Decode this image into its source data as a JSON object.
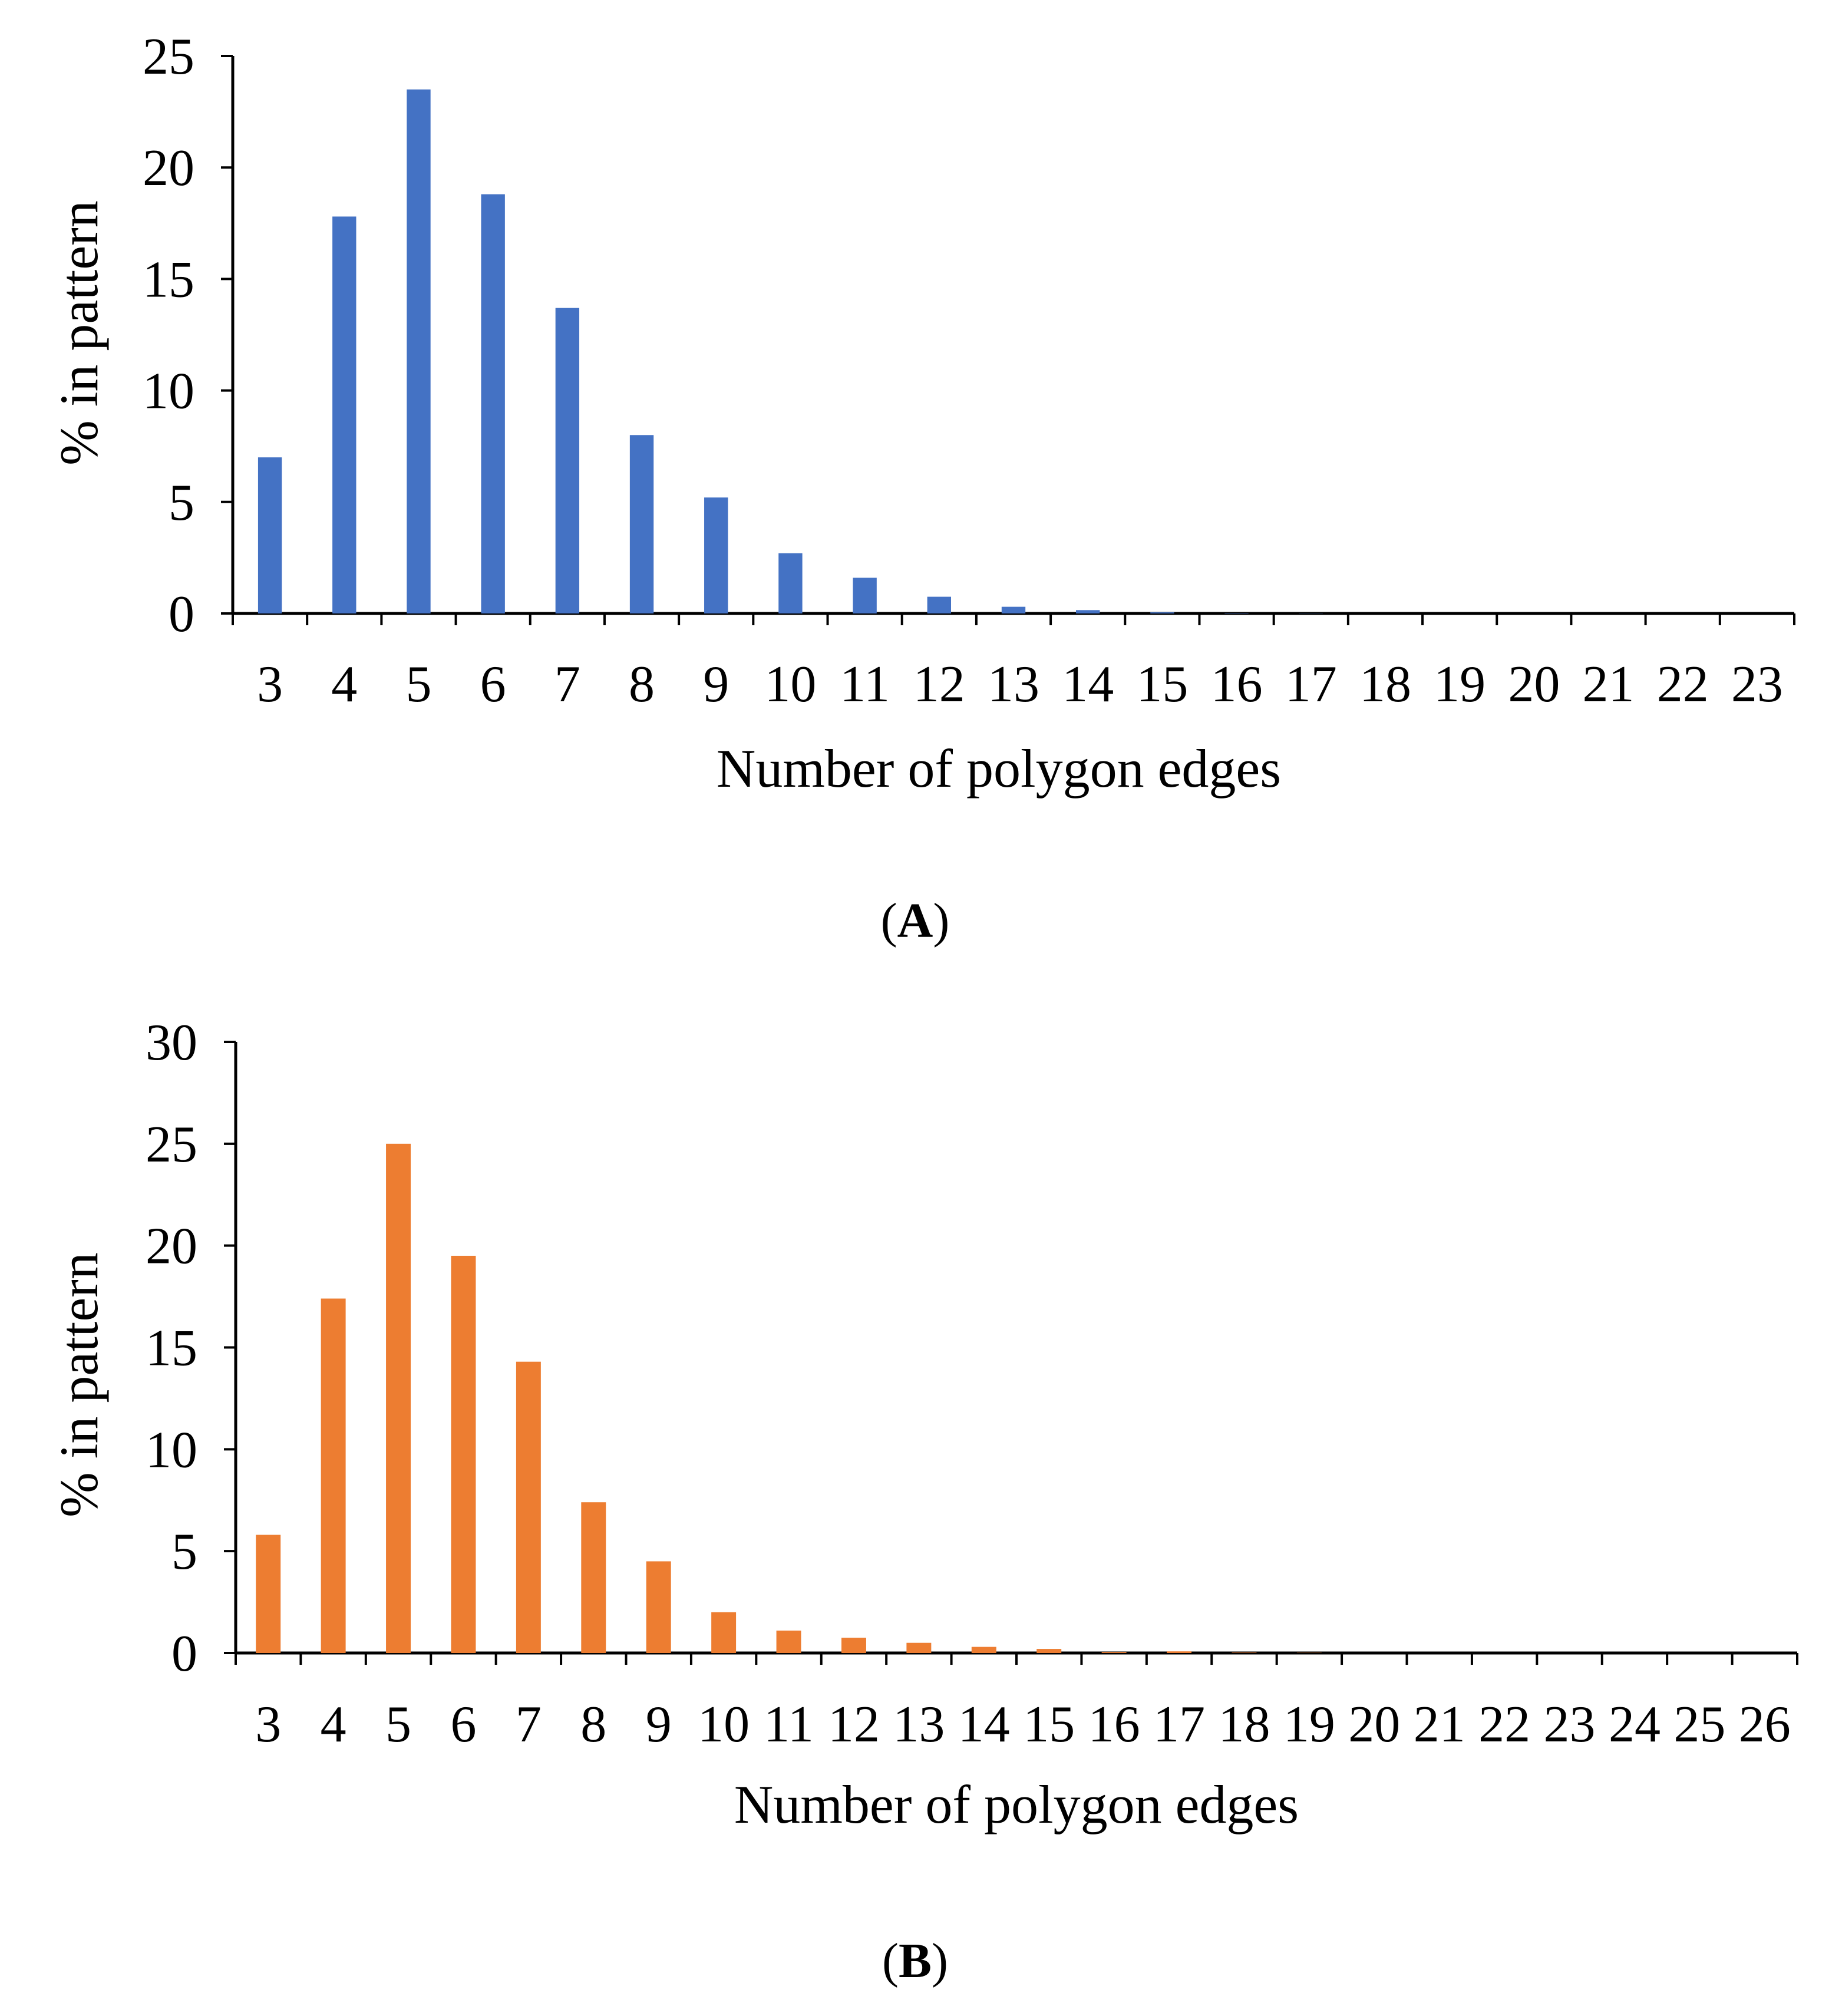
{
  "chart_data": [
    {
      "type": "bar",
      "panel_label": "A",
      "categories": [
        "3",
        "4",
        "5",
        "6",
        "7",
        "8",
        "9",
        "10",
        "11",
        "12",
        "13",
        "14",
        "15",
        "16",
        "17",
        "18",
        "19",
        "20",
        "21",
        "22",
        "23"
      ],
      "series": [
        {
          "name": "% in pattern",
          "color": "#4472C4",
          "values": [
            7.0,
            17.8,
            23.5,
            18.8,
            13.7,
            8.0,
            5.2,
            2.7,
            1.6,
            0.75,
            0.3,
            0.15,
            0.05,
            0.02,
            0.01,
            0,
            0,
            0,
            0,
            0,
            0
          ]
        }
      ],
      "xlabel": "Number of polygon edges",
      "ylabel": "% in pattern",
      "ylim": [
        0,
        25
      ],
      "yticks": [
        "0",
        "5",
        "10",
        "15",
        "20",
        "25"
      ],
      "grid": false,
      "legend": "none"
    },
    {
      "type": "bar",
      "panel_label": "B",
      "categories": [
        "3",
        "4",
        "5",
        "6",
        "7",
        "8",
        "9",
        "10",
        "11",
        "12",
        "13",
        "14",
        "15",
        "16",
        "17",
        "18",
        "19",
        "20",
        "21",
        "22",
        "23",
        "24",
        "25",
        "26"
      ],
      "series": [
        {
          "name": "% in pattern",
          "color": "#ED7D31",
          "values": [
            5.8,
            17.4,
            25.0,
            19.5,
            14.3,
            7.4,
            4.5,
            2.0,
            1.1,
            0.75,
            0.5,
            0.3,
            0.2,
            0.05,
            0.08,
            0.02,
            0.01,
            0,
            0,
            0,
            0,
            0,
            0,
            0
          ]
        }
      ],
      "xlabel": "Number of polygon edges",
      "ylabel": "% in pattern",
      "ylim": [
        0,
        30
      ],
      "yticks": [
        "0",
        "5",
        "10",
        "15",
        "20",
        "25",
        "30"
      ],
      "grid": false,
      "legend": "none"
    }
  ]
}
